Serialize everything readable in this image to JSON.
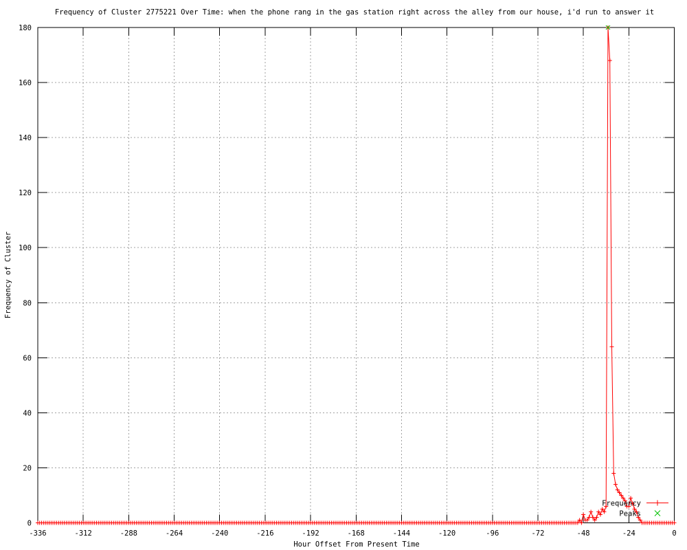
{
  "colors": {
    "background": "#ffffff",
    "axis": "#000000",
    "grid": "#a0a0a0",
    "frequency_series": "#ff0000",
    "peaks_series": "#00c000"
  },
  "chart_data": {
    "type": "line",
    "title": "Frequency of Cluster 2775221 Over Time: when the phone rang in the gas station right across the alley from our house, i'd run to answer it",
    "xlabel": "Hour Offset From Present Time",
    "ylabel": "Frequency of Cluster",
    "xlim": [
      -336,
      0
    ],
    "ylim": [
      0,
      180
    ],
    "xticks": [
      -336,
      -312,
      -288,
      -264,
      -240,
      -216,
      -192,
      -168,
      -144,
      -120,
      -96,
      -72,
      -48,
      -24,
      0
    ],
    "yticks": [
      0,
      20,
      40,
      60,
      80,
      100,
      120,
      140,
      160,
      180
    ],
    "grid": true,
    "legend": {
      "position": "inside-bottom-right",
      "entries": [
        {
          "label": "Frequency",
          "color": "#ff0000",
          "marker": "plus",
          "sample": "line-point"
        },
        {
          "label": "Peaks",
          "color": "#00c000",
          "marker": "cross",
          "sample": "point"
        }
      ]
    },
    "series": [
      {
        "name": "Frequency",
        "color": "#ff0000",
        "marker": "plus",
        "style": "linespoints",
        "x_start": -336,
        "x_end": 0,
        "x_step": 1,
        "default_y": 0,
        "nonzero_points": {
          "-50": 1,
          "-48": 3,
          "-47": 1,
          "-46": 1,
          "-45": 2,
          "-44": 4,
          "-43": 2,
          "-42": 1,
          "-41": 2,
          "-40": 4,
          "-39": 3,
          "-38": 5,
          "-37": 4,
          "-36": 6,
          "-35": 180,
          "-34": 168,
          "-33": 64,
          "-32": 18,
          "-31": 14,
          "-30": 12,
          "-29": 11,
          "-28": 10,
          "-27": 9,
          "-26": 8,
          "-25": 6,
          "-24": 6,
          "-23": 9,
          "-22": 7,
          "-21": 5,
          "-20": 4,
          "-19": 2,
          "-18": 1
        }
      },
      {
        "name": "Peaks",
        "color": "#00c000",
        "marker": "cross",
        "style": "points",
        "points": [
          [
            -35,
            180
          ]
        ]
      }
    ]
  }
}
